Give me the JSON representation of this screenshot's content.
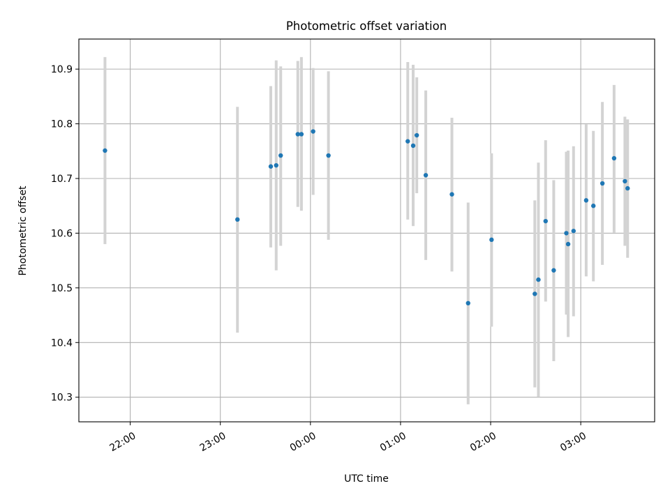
{
  "chart_data": {
    "type": "scatter",
    "title": "Photometric offset variation",
    "xlabel": "UTC time",
    "ylabel": "Photometric offset",
    "x_unit": "hours past 00:00 UTC (negative = previous day)",
    "xlim": [
      -2.57,
      3.82
    ],
    "ylim": [
      10.255,
      10.955
    ],
    "grid": true,
    "x_ticks": [
      {
        "value": -2,
        "label": "22:00"
      },
      {
        "value": -1,
        "label": "23:00"
      },
      {
        "value": 0,
        "label": "00:00"
      },
      {
        "value": 1,
        "label": "01:00"
      },
      {
        "value": 2,
        "label": "02:00"
      },
      {
        "value": 3,
        "label": "03:00"
      }
    ],
    "y_ticks": [
      {
        "value": 10.3,
        "label": "10.3"
      },
      {
        "value": 10.4,
        "label": "10.4"
      },
      {
        "value": 10.5,
        "label": "10.5"
      },
      {
        "value": 10.6,
        "label": "10.6"
      },
      {
        "value": 10.7,
        "label": "10.7"
      },
      {
        "value": 10.8,
        "label": "10.8"
      },
      {
        "value": 10.9,
        "label": "10.9"
      }
    ],
    "colors": {
      "points": "#1f77b4",
      "errorbars": "#d3d3d3"
    },
    "points": [
      {
        "x": -2.28,
        "y": 10.751,
        "ylo": 10.58,
        "yhi": 10.922
      },
      {
        "x": -0.81,
        "y": 10.625,
        "ylo": 10.418,
        "yhi": 10.831
      },
      {
        "x": -0.44,
        "y": 10.722,
        "ylo": 10.574,
        "yhi": 10.869
      },
      {
        "x": -0.38,
        "y": 10.724,
        "ylo": 10.532,
        "yhi": 10.916
      },
      {
        "x": -0.33,
        "y": 10.742,
        "ylo": 10.577,
        "yhi": 10.905
      },
      {
        "x": -0.14,
        "y": 10.781,
        "ylo": 10.648,
        "yhi": 10.915
      },
      {
        "x": -0.1,
        "y": 10.781,
        "ylo": 10.641,
        "yhi": 10.922
      },
      {
        "x": 0.03,
        "y": 10.786,
        "ylo": 10.67,
        "yhi": 10.902
      },
      {
        "x": 0.2,
        "y": 10.742,
        "ylo": 10.588,
        "yhi": 10.896
      },
      {
        "x": 1.08,
        "y": 10.768,
        "ylo": 10.625,
        "yhi": 10.913
      },
      {
        "x": 1.14,
        "y": 10.76,
        "ylo": 10.613,
        "yhi": 10.908
      },
      {
        "x": 1.18,
        "y": 10.779,
        "ylo": 10.673,
        "yhi": 10.885
      },
      {
        "x": 1.28,
        "y": 10.706,
        "ylo": 10.551,
        "yhi": 10.861
      },
      {
        "x": 1.57,
        "y": 10.671,
        "ylo": 10.53,
        "yhi": 10.811
      },
      {
        "x": 1.75,
        "y": 10.472,
        "ylo": 10.287,
        "yhi": 10.656
      },
      {
        "x": 2.01,
        "y": 10.588,
        "ylo": 10.429,
        "yhi": 10.746
      },
      {
        "x": 2.49,
        "y": 10.489,
        "ylo": 10.318,
        "yhi": 10.66
      },
      {
        "x": 2.53,
        "y": 10.515,
        "ylo": 10.301,
        "yhi": 10.729
      },
      {
        "x": 2.61,
        "y": 10.622,
        "ylo": 10.475,
        "yhi": 10.77
      },
      {
        "x": 2.7,
        "y": 10.532,
        "ylo": 10.366,
        "yhi": 10.697
      },
      {
        "x": 2.84,
        "y": 10.6,
        "ylo": 10.451,
        "yhi": 10.749
      },
      {
        "x": 2.86,
        "y": 10.58,
        "ylo": 10.41,
        "yhi": 10.751
      },
      {
        "x": 2.92,
        "y": 10.604,
        "ylo": 10.448,
        "yhi": 10.759
      },
      {
        "x": 3.06,
        "y": 10.66,
        "ylo": 10.521,
        "yhi": 10.799
      },
      {
        "x": 3.14,
        "y": 10.65,
        "ylo": 10.512,
        "yhi": 10.787
      },
      {
        "x": 3.24,
        "y": 10.691,
        "ylo": 10.542,
        "yhi": 10.84
      },
      {
        "x": 3.37,
        "y": 10.737,
        "ylo": 10.601,
        "yhi": 10.871
      },
      {
        "x": 3.49,
        "y": 10.695,
        "ylo": 10.577,
        "yhi": 10.813
      },
      {
        "x": 3.52,
        "y": 10.682,
        "ylo": 10.555,
        "yhi": 10.808
      }
    ]
  }
}
